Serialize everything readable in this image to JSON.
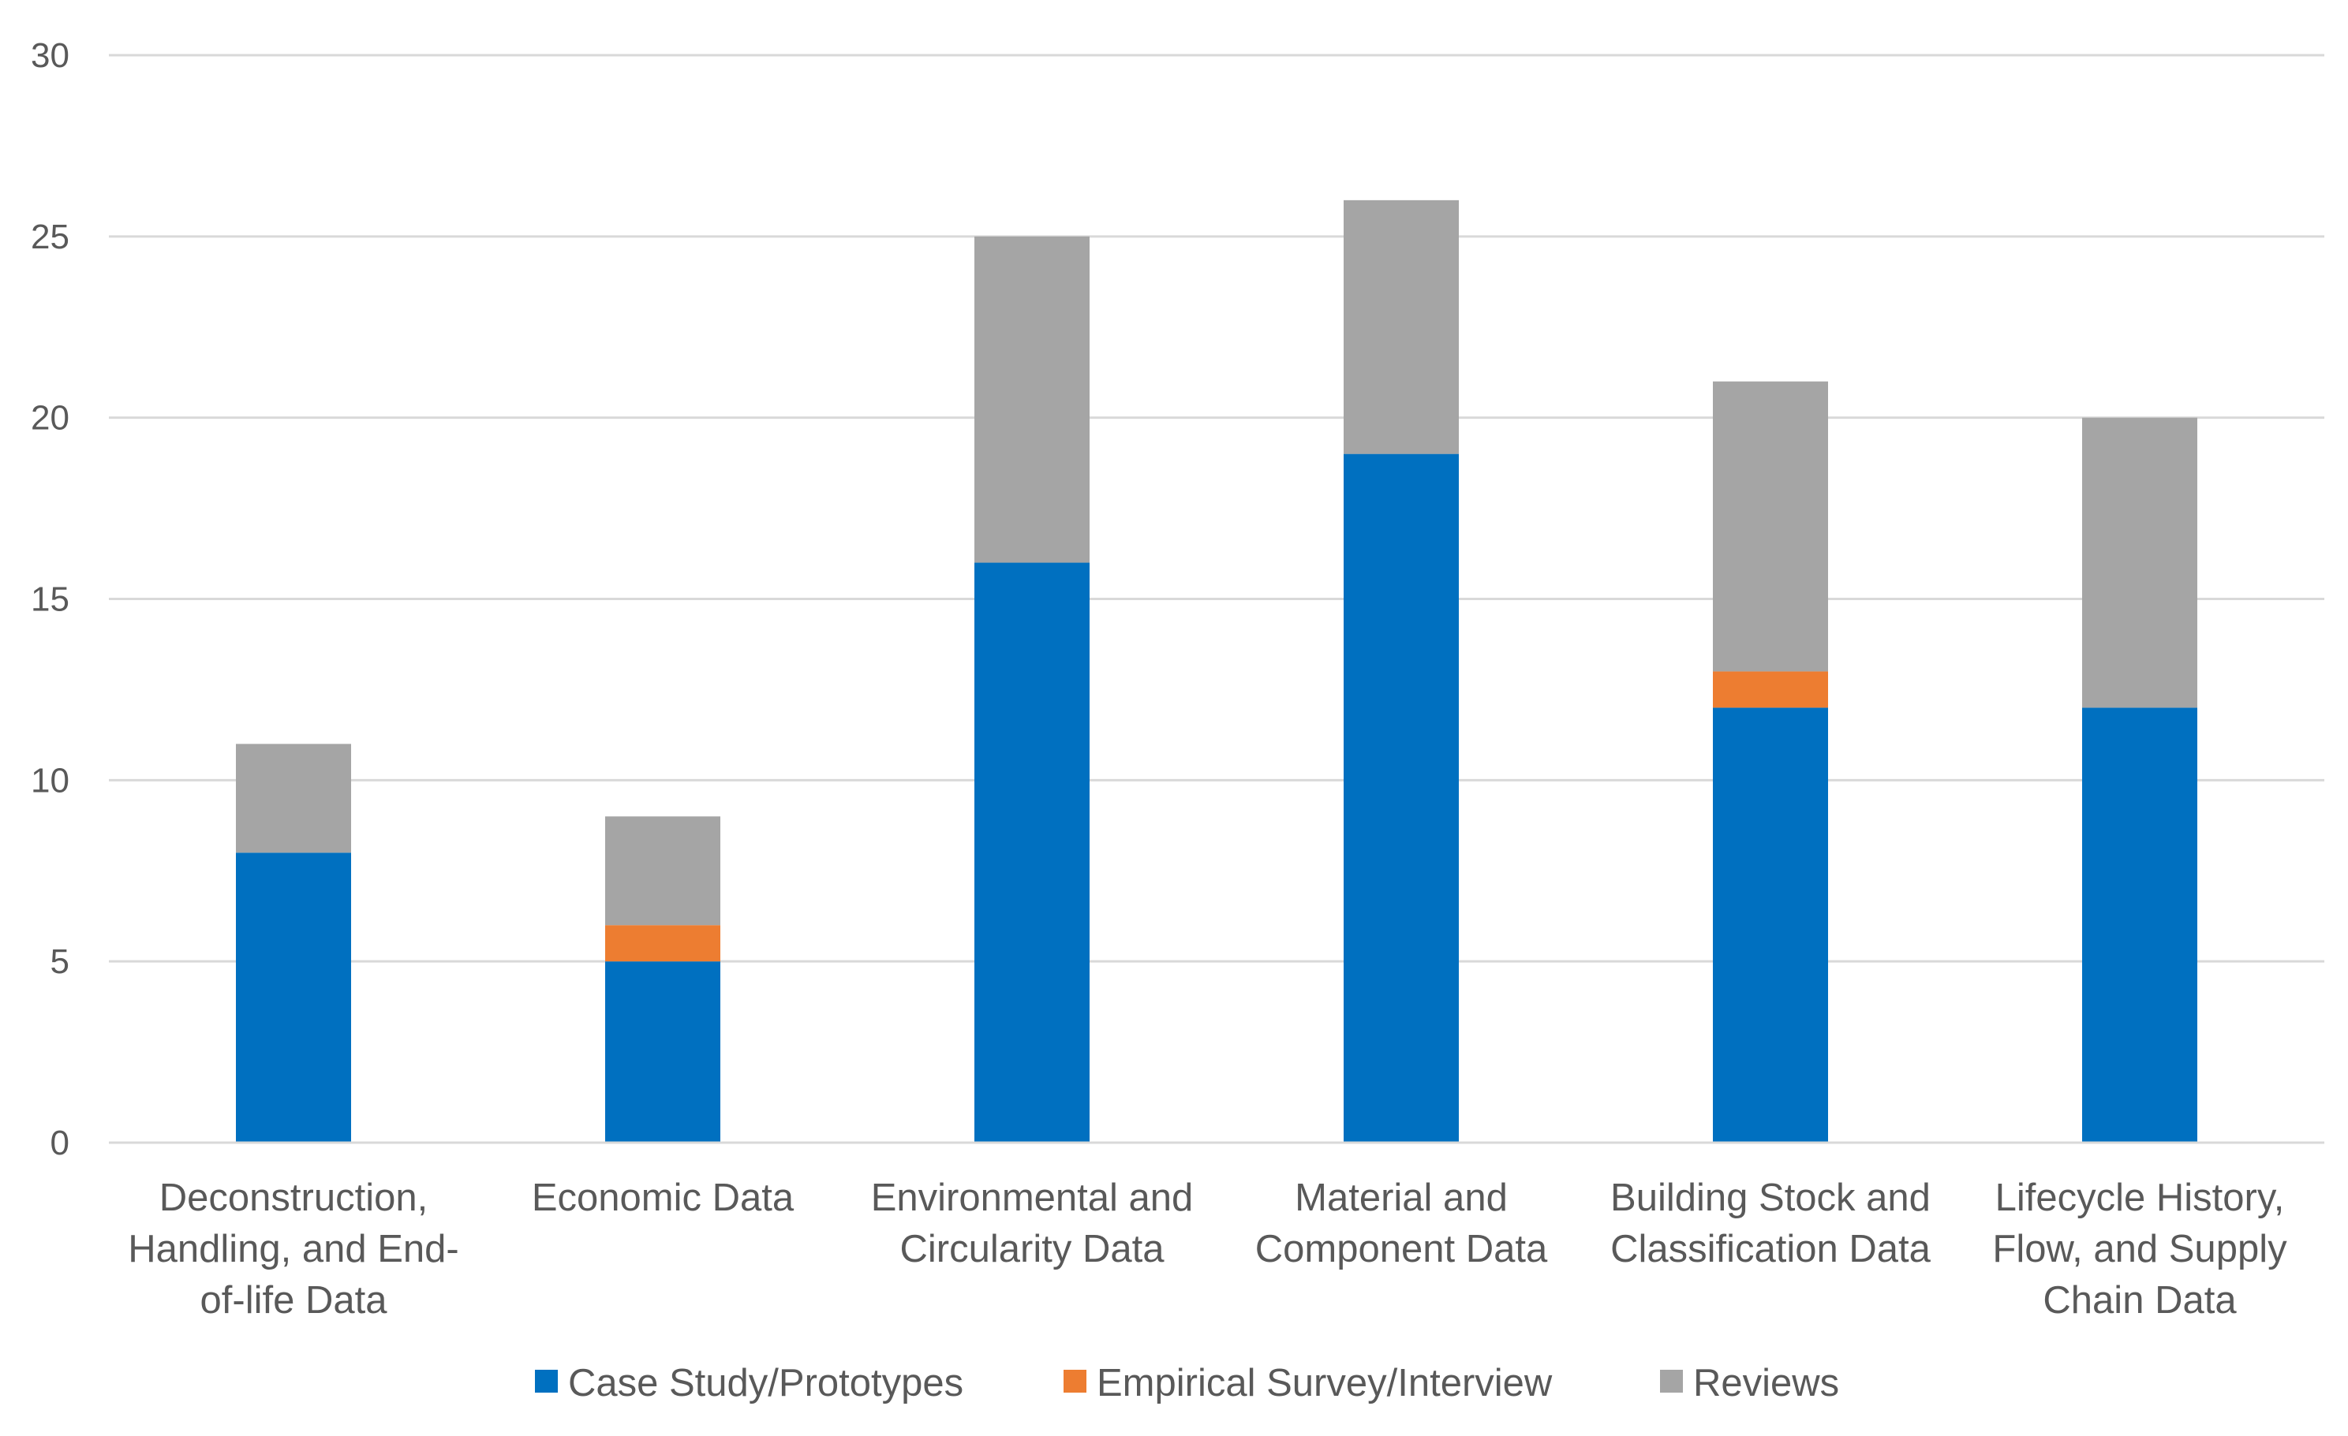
{
  "chart_data": {
    "type": "bar",
    "stacked": true,
    "title": "",
    "xlabel": "",
    "ylabel": "",
    "ylim": [
      0,
      30
    ],
    "yticks": [
      0,
      5,
      10,
      15,
      20,
      25,
      30
    ],
    "grid": true,
    "legend_position": "bottom",
    "categories": [
      [
        "Deconstruction,",
        "Handling, and End-",
        "of-life Data"
      ],
      [
        "Economic Data"
      ],
      [
        "Environmental and",
        "Circularity Data"
      ],
      [
        "Material and",
        "Component Data"
      ],
      [
        "Building Stock and",
        "Classification Data"
      ],
      [
        "Lifecycle History,",
        "Flow, and Supply",
        "Chain Data"
      ]
    ],
    "series": [
      {
        "name": "Case Study/Prototypes",
        "color": "#0070c0",
        "values": [
          8,
          5,
          16,
          19,
          12,
          12
        ]
      },
      {
        "name": "Empirical Survey/Interview",
        "color": "#ed7d31",
        "values": [
          0,
          1,
          0,
          0,
          1,
          0
        ]
      },
      {
        "name": "Reviews",
        "color": "#a5a5a5",
        "values": [
          3,
          3,
          9,
          7,
          8,
          8
        ]
      }
    ]
  }
}
